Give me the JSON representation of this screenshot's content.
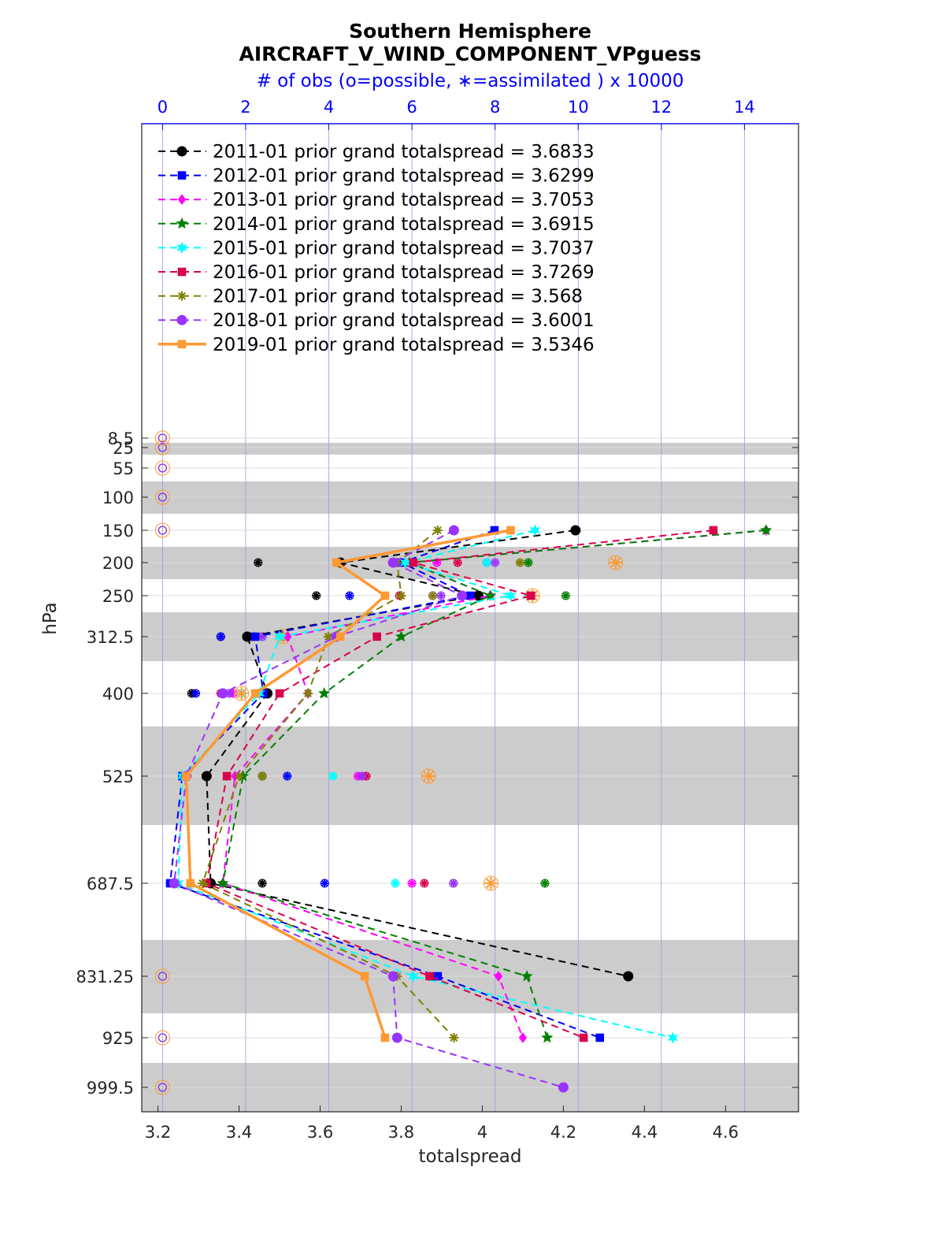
{
  "chart_data": {
    "type": "line",
    "title": "Southern Hemisphere",
    "subtitle": "AIRCRAFT_V_WIND_COMPONENT_VPguess",
    "top_axis_label": "# of obs (o=possible, ∗=assimilated ) x 10000",
    "xlabel": "totalspread",
    "ylabel": "hPa",
    "xlim": [
      3.16,
      4.78
    ],
    "x_ticks": [
      "3.2",
      "3.4",
      "3.6",
      "3.8",
      "4",
      "4.2",
      "4.4",
      "4.6"
    ],
    "top_xlim": [
      -0.5,
      15.3
    ],
    "top_ticks": [
      "0",
      "2",
      "4",
      "6",
      "8",
      "10",
      "12",
      "14"
    ],
    "y_levels": [
      8.5,
      25,
      55,
      100,
      150,
      200,
      250,
      312.5,
      400,
      525,
      687.5,
      831.25,
      925,
      999.5
    ],
    "y_tick_labels": [
      "8.5",
      "25",
      "55",
      "100",
      "150",
      "200",
      "250",
      "312.5",
      "400",
      "525",
      "687.5",
      "831.25",
      "925",
      "999.5"
    ],
    "y_reversed": true,
    "grid": true,
    "legend_position": "top-left",
    "series": [
      {
        "name": "2011-01 prior grand totalspread = 3.6833",
        "color": "#000000",
        "dash": "dashed",
        "marker": "circle",
        "points": [
          [
            4.23,
            150
          ],
          [
            3.65,
            200
          ],
          [
            3.99,
            250
          ],
          [
            3.42,
            312.5
          ],
          [
            3.47,
            400
          ],
          [
            3.32,
            525
          ],
          [
            3.33,
            687.5
          ],
          [
            4.36,
            831.25
          ]
        ],
        "obs_possible": [
          [
            2.3,
            200
          ],
          [
            3.7,
            250
          ],
          [
            1.4,
            312.5
          ],
          [
            0.7,
            400
          ],
          [
            2.4,
            525
          ],
          [
            2.4,
            687.5
          ]
        ],
        "obs_assimilated": [
          [
            2.3,
            200
          ],
          [
            3.7,
            250
          ],
          [
            1.4,
            312.5
          ],
          [
            0.7,
            400
          ],
          [
            2.4,
            525
          ],
          [
            2.4,
            687.5
          ]
        ]
      },
      {
        "name": "2012-01 prior grand totalspread = 3.6299",
        "color": "#0000ff",
        "dash": "dashed",
        "marker": "square",
        "points": [
          [
            4.03,
            150
          ],
          [
            3.8,
            200
          ],
          [
            3.97,
            250
          ],
          [
            3.44,
            312.5
          ],
          [
            3.46,
            400
          ],
          [
            3.26,
            525
          ],
          [
            3.23,
            687.5
          ],
          [
            3.89,
            831.25
          ],
          [
            4.29,
            925
          ]
        ],
        "obs_possible": [
          [
            7.8,
            200
          ],
          [
            4.5,
            250
          ],
          [
            1.4,
            312.5
          ],
          [
            0.8,
            400
          ],
          [
            3.0,
            525
          ],
          [
            3.9,
            687.5
          ]
        ],
        "obs_assimilated": [
          [
            7.8,
            200
          ],
          [
            4.5,
            250
          ],
          [
            1.4,
            312.5
          ],
          [
            0.8,
            400
          ],
          [
            3.0,
            525
          ],
          [
            3.9,
            687.5
          ]
        ]
      },
      {
        "name": "2013-01 prior grand totalspread = 3.7053",
        "color": "#ff00ff",
        "dash": "dashed",
        "marker": "diamond",
        "points": [
          [
            4.7,
            150
          ],
          [
            3.82,
            200
          ],
          [
            4.02,
            250
          ],
          [
            3.52,
            312.5
          ],
          [
            3.57,
            400
          ],
          [
            3.39,
            525
          ],
          [
            3.36,
            687.5
          ],
          [
            4.04,
            831.25
          ],
          [
            4.1,
            925
          ]
        ],
        "obs_possible": [
          [
            6.6,
            200
          ],
          [
            6.5,
            250
          ],
          [
            2.1,
            312.5
          ],
          [
            1.7,
            400
          ],
          [
            4.7,
            525
          ],
          [
            6.0,
            687.5
          ]
        ],
        "obs_assimilated": [
          [
            6.6,
            200
          ],
          [
            6.5,
            250
          ],
          [
            2.1,
            312.5
          ],
          [
            1.7,
            400
          ],
          [
            4.7,
            525
          ],
          [
            6.0,
            687.5
          ]
        ]
      },
      {
        "name": "2014-01 prior grand totalspread = 3.6915",
        "color": "#008000",
        "dash": "dashed",
        "marker": "star",
        "points": [
          [
            4.7,
            150
          ],
          [
            3.82,
            200
          ],
          [
            4.02,
            250
          ],
          [
            3.8,
            312.5
          ],
          [
            3.61,
            400
          ],
          [
            3.41,
            525
          ],
          [
            3.36,
            687.5
          ],
          [
            4.11,
            831.25
          ],
          [
            4.16,
            925
          ]
        ],
        "obs_possible": [
          [
            8.8,
            200
          ],
          [
            9.7,
            250
          ],
          [
            2.2,
            312.5
          ],
          [
            2.3,
            400
          ],
          [
            2.4,
            525
          ],
          [
            9.2,
            687.5
          ]
        ],
        "obs_assimilated": [
          [
            8.8,
            200
          ],
          [
            9.7,
            250
          ],
          [
            2.2,
            312.5
          ],
          [
            2.3,
            400
          ],
          [
            2.4,
            525
          ],
          [
            9.2,
            687.5
          ]
        ]
      },
      {
        "name": "2015-01 prior grand totalspread = 3.7037",
        "color": "#00ffff",
        "dash": "dashed",
        "marker": "hexagram",
        "points": [
          [
            4.13,
            150
          ],
          [
            3.81,
            200
          ],
          [
            4.07,
            250
          ],
          [
            3.5,
            312.5
          ],
          [
            3.45,
            400
          ],
          [
            3.26,
            525
          ],
          [
            3.25,
            687.5
          ],
          [
            3.83,
            831.25
          ],
          [
            4.47,
            925
          ]
        ],
        "obs_possible": [
          [
            7.8,
            200
          ],
          [
            8.8,
            250
          ],
          [
            2.4,
            312.5
          ],
          [
            1.9,
            400
          ],
          [
            4.1,
            525
          ],
          [
            5.6,
            687.5
          ]
        ],
        "obs_assimilated": [
          [
            7.8,
            200
          ],
          [
            8.8,
            250
          ],
          [
            2.4,
            312.5
          ],
          [
            1.9,
            400
          ],
          [
            4.1,
            525
          ],
          [
            5.6,
            687.5
          ]
        ]
      },
      {
        "name": "2016-01 prior grand totalspread = 3.7269",
        "color": "#d9004c",
        "dash": "dashed",
        "marker": "square",
        "points": [
          [
            4.57,
            150
          ],
          [
            3.83,
            200
          ],
          [
            4.12,
            250
          ],
          [
            3.74,
            312.5
          ],
          [
            3.5,
            400
          ],
          [
            3.37,
            525
          ],
          [
            3.32,
            687.5
          ],
          [
            3.87,
            831.25
          ],
          [
            4.25,
            925
          ]
        ],
        "obs_possible": [
          [
            7.1,
            200
          ],
          [
            5.7,
            250
          ],
          [
            2.1,
            312.5
          ],
          [
            1.4,
            400
          ],
          [
            4.9,
            525
          ],
          [
            6.3,
            687.5
          ]
        ],
        "obs_assimilated": [
          [
            7.1,
            200
          ],
          [
            5.7,
            250
          ],
          [
            2.1,
            312.5
          ],
          [
            1.4,
            400
          ],
          [
            4.9,
            525
          ],
          [
            6.3,
            687.5
          ]
        ]
      },
      {
        "name": "2017-01 prior grand totalspread = 3.568",
        "color": "#808000",
        "dash": "dashed",
        "marker": "asterisk",
        "points": [
          [
            3.89,
            150
          ],
          [
            3.79,
            200
          ],
          [
            3.8,
            250
          ],
          [
            3.62,
            312.5
          ],
          [
            3.57,
            400
          ],
          [
            3.4,
            525
          ],
          [
            3.31,
            687.5
          ],
          [
            3.79,
            831.25
          ],
          [
            3.93,
            925
          ]
        ],
        "obs_possible": [
          [
            8.6,
            200
          ],
          [
            6.5,
            250
          ],
          [
            2.9,
            312.5
          ],
          [
            2.3,
            400
          ],
          [
            2.4,
            525
          ],
          [
            7.0,
            687.5
          ]
        ],
        "obs_assimilated": [
          [
            8.6,
            200
          ],
          [
            6.5,
            250
          ],
          [
            2.9,
            312.5
          ],
          [
            2.3,
            400
          ],
          [
            2.4,
            525
          ],
          [
            7.0,
            687.5
          ]
        ]
      },
      {
        "name": "2018-01 prior grand totalspread = 3.6001",
        "color": "#9933ff",
        "dash": "dashed",
        "marker": "circle",
        "points": [
          [
            3.93,
            150
          ],
          [
            3.78,
            200
          ],
          [
            3.95,
            250
          ],
          [
            3.64,
            312.5
          ],
          [
            3.36,
            400
          ],
          [
            3.27,
            525
          ],
          [
            3.24,
            687.5
          ],
          [
            3.78,
            831.25
          ],
          [
            3.79,
            925
          ],
          [
            4.2,
            999.5
          ]
        ],
        "obs_possible": [
          [
            8.0,
            200
          ],
          [
            6.7,
            250
          ],
          [
            2.4,
            312.5
          ],
          [
            1.6,
            400
          ],
          [
            4.8,
            525
          ],
          [
            7.0,
            687.5
          ]
        ],
        "obs_assimilated": [
          [
            8.0,
            200
          ],
          [
            6.7,
            250
          ],
          [
            2.4,
            312.5
          ],
          [
            1.6,
            400
          ],
          [
            4.8,
            525
          ],
          [
            7.0,
            687.5
          ]
        ]
      },
      {
        "name": "2019-01 prior grand totalspread = 3.5346",
        "color": "#ff9933",
        "dash": "solid",
        "marker": "square",
        "points": [
          [
            4.07,
            150
          ],
          [
            3.64,
            200
          ],
          [
            3.76,
            250
          ],
          [
            3.65,
            312.5
          ],
          [
            3.44,
            400
          ],
          [
            3.27,
            525
          ],
          [
            3.28,
            687.5
          ],
          [
            3.71,
            831.25
          ],
          [
            3.76,
            925
          ]
        ],
        "obs_possible": [
          [
            10.9,
            200
          ],
          [
            8.9,
            250
          ],
          [
            2.9,
            312.5
          ],
          [
            1.9,
            400
          ],
          [
            6.4,
            525
          ],
          [
            7.9,
            687.5
          ]
        ],
        "obs_assimilated": [
          [
            10.9,
            200
          ],
          [
            8.9,
            250
          ],
          [
            2.9,
            312.5
          ],
          [
            1.9,
            400
          ],
          [
            6.4,
            525
          ],
          [
            7.9,
            687.5
          ]
        ]
      }
    ]
  }
}
